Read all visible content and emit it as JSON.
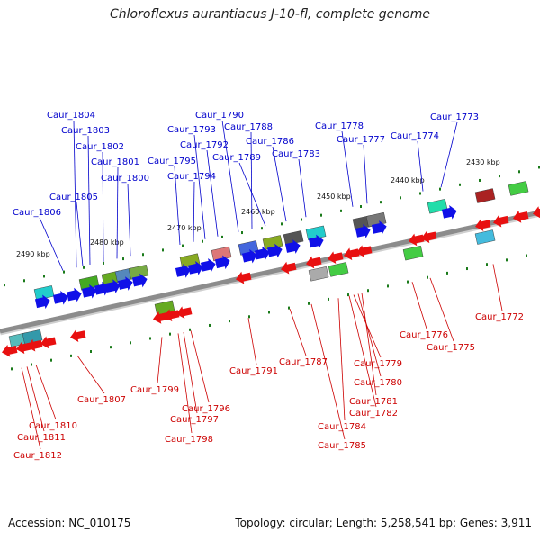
{
  "title": "Chloroflexus aurantiacus J-10-fl, complete genome",
  "footer": {
    "accession": "Accession: NC_010175",
    "summary": "Topology: circular; Length: 5,258,541 bp; Genes: 3,911"
  },
  "colors": {
    "upper_label": "#0000cc",
    "lower_label": "#cc0000",
    "backbone": "#8c8c8c",
    "tick": "#1a7a1a",
    "forward_arrow": "#1010e8",
    "reverse_arrow": "#e81010"
  },
  "scale_ticks": [
    "2490 kbp",
    "2480 kbp",
    "2470 kbp",
    "2460 kbp",
    "2450 kbp",
    "2440 kbp",
    "2430 kbp"
  ],
  "upper_genes": [
    "Caur_1804",
    "Caur_1803",
    "Caur_1802",
    "Caur_1801",
    "Caur_1800",
    "Caur_1805",
    "Caur_1806",
    "Caur_1795",
    "Caur_1794",
    "Caur_1793",
    "Caur_1792",
    "Caur_1790",
    "Caur_1788",
    "Caur_1789",
    "Caur_1786",
    "Caur_1783",
    "Caur_1778",
    "Caur_1777",
    "Caur_1774",
    "Caur_1773"
  ],
  "lower_genes": [
    "Caur_1772",
    "Caur_1776",
    "Caur_1775",
    "Caur_1787",
    "Caur_1791",
    "Caur_1779",
    "Caur_1780",
    "Caur_1781",
    "Caur_1782",
    "Caur_1784",
    "Caur_1785",
    "Caur_1799",
    "Caur_1796",
    "Caur_1797",
    "Caur_1798",
    "Caur_1807",
    "Caur_1810",
    "Caur_1811",
    "Caur_1812"
  ]
}
